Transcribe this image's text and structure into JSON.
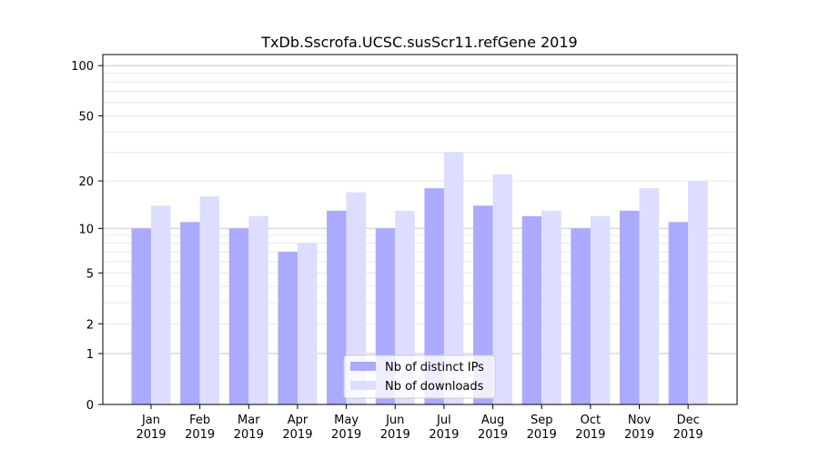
{
  "chart_data": {
    "type": "bar",
    "title": "TxDb.Sscrofa.UCSC.susScr11.refGene 2019",
    "xlabel": "",
    "ylabel": "",
    "yscale": "log(y+1)",
    "ylim": [
      0,
      110
    ],
    "yticks": [
      0,
      1,
      2,
      5,
      10,
      20,
      50,
      100
    ],
    "categories": [
      "Jan\n2019",
      "Feb\n2019",
      "Mar\n2019",
      "Apr\n2019",
      "May\n2019",
      "Jun\n2019",
      "Jul\n2019",
      "Aug\n2019",
      "Sep\n2019",
      "Oct\n2019",
      "Nov\n2019",
      "Dec\n2019"
    ],
    "series": [
      {
        "name": "Nb of distinct IPs",
        "color": "#aaaaff",
        "values": [
          10,
          11,
          10,
          7,
          13,
          10,
          18,
          14,
          12,
          10,
          13,
          11
        ]
      },
      {
        "name": "Nb of downloads",
        "color": "#ddddff",
        "values": [
          14,
          16,
          12,
          8,
          17,
          13,
          30,
          22,
          13,
          12,
          18,
          20
        ]
      }
    ],
    "legend_position": "lower-center",
    "grid": true
  }
}
